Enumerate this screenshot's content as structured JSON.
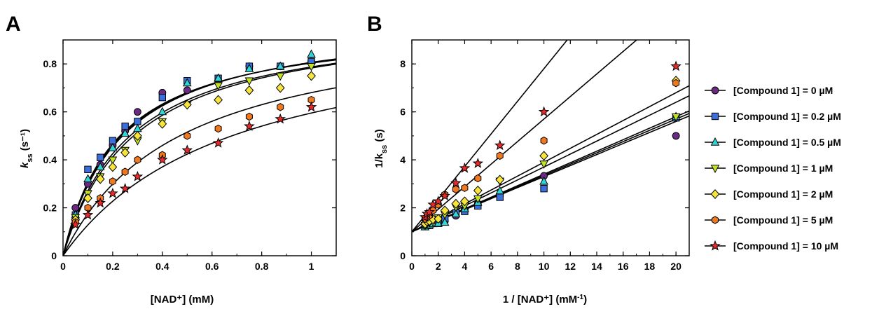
{
  "colors": {
    "series": [
      "#6a2a84",
      "#3d6fdc",
      "#2fd6d6",
      "#c3e322",
      "#f7e53b",
      "#f0781f",
      "#e52b2b"
    ],
    "line": "#000000"
  },
  "markers": [
    "circle",
    "square",
    "triangle-up",
    "triangle-down",
    "diamond",
    "hexagon",
    "star"
  ],
  "legend": {
    "placement": "right",
    "labels": [
      "[Compound 1] = 0 µM",
      "[Compound 1] = 0.2 µM",
      "[Compound 1] = 0.5 µM",
      "[Compound 1] = 1 µM",
      "[Compound 1] = 2 µM",
      "[Compound 1] = 5 µM",
      "[Compound 1] = 10 µM"
    ]
  },
  "chart_data": [
    {
      "panel_label": "A",
      "type": "scatter",
      "xlabel": "[NAD⁺] (mM)",
      "ylabel_main": "k",
      "ylabel_sub": "ss",
      "ylabel_rest": " (s⁻¹)",
      "xlim": [
        0,
        1.1
      ],
      "ylim": [
        0,
        0.9
      ],
      "xticks": [
        0,
        0.2,
        0.4,
        0.6,
        0.8,
        1
      ],
      "xtick_labels": [
        "0",
        "0.2",
        "0.4",
        "0.6",
        "0.8",
        "1"
      ],
      "yticks": [
        0,
        0.2,
        0.4,
        0.6,
        0.8
      ],
      "ytick_labels": [
        "0",
        "0.2",
        "0.4",
        "0.6",
        "0.8"
      ],
      "x": [
        0.05,
        0.1,
        0.15,
        0.2,
        0.25,
        0.3,
        0.4,
        0.5,
        0.625,
        0.75,
        0.875,
        1.0
      ],
      "series": [
        {
          "values": [
            0.2,
            0.3,
            0.38,
            0.46,
            0.52,
            0.6,
            0.68,
            0.69,
            0.73,
            0.79,
            0.79,
            0.81
          ],
          "fit": {
            "vmax": 0.98,
            "km": 0.22
          }
        },
        {
          "values": [
            0.17,
            0.36,
            0.41,
            0.48,
            0.54,
            0.56,
            0.66,
            0.73,
            0.74,
            0.79,
            0.79,
            0.81
          ],
          "fit": {
            "vmax": 0.99,
            "km": 0.23
          }
        },
        {
          "values": [
            0.17,
            0.32,
            0.37,
            0.45,
            0.51,
            0.53,
            0.6,
            0.72,
            0.74,
            0.78,
            0.79,
            0.84
          ],
          "fit": {
            "vmax": 1.0,
            "km": 0.24
          }
        },
        {
          "values": [
            0.16,
            0.26,
            0.33,
            0.4,
            0.44,
            0.48,
            0.56,
            0.63,
            0.71,
            0.73,
            0.75,
            0.79
          ],
          "fit": {
            "vmax": 1.0,
            "km": 0.27
          }
        },
        {
          "values": [
            0.15,
            0.24,
            0.32,
            0.37,
            0.43,
            0.5,
            0.55,
            0.63,
            0.65,
            0.69,
            0.7,
            0.75
          ],
          "fit": {
            "vmax": 1.01,
            "km": 0.29
          }
        },
        {
          "values": [
            0.14,
            0.2,
            0.24,
            0.31,
            0.35,
            0.4,
            0.42,
            0.5,
            0.53,
            0.58,
            0.62,
            0.65
          ],
          "fit": {
            "vmax": 1.0,
            "km": 0.47
          }
        },
        {
          "values": [
            0.13,
            0.17,
            0.22,
            0.26,
            0.28,
            0.33,
            0.4,
            0.44,
            0.47,
            0.54,
            0.57,
            0.62
          ],
          "fit": {
            "vmax": 1.0,
            "km": 0.68
          }
        }
      ]
    },
    {
      "panel_label": "B",
      "type": "scatter",
      "xlabel_main": "1 / [NAD⁺] (mM",
      "xlabel_sup": "-1",
      "xlabel_end": ")",
      "ylabel_main": "1/k",
      "ylabel_sub": "ss",
      "ylabel_rest": " (s)",
      "xlim": [
        0,
        21
      ],
      "ylim": [
        0,
        9
      ],
      "xticks": [
        0,
        2,
        4,
        6,
        8,
        10,
        12,
        14,
        16,
        18,
        20
      ],
      "xtick_labels": [
        "0",
        "2",
        "4",
        "6",
        "8",
        "10",
        "12",
        "14",
        "16",
        "18",
        "20"
      ],
      "yticks": [
        0,
        2,
        4,
        6,
        8
      ],
      "ytick_labels": [
        "0",
        "2",
        "4",
        "6",
        "8"
      ],
      "x": [
        1,
        1.143,
        1.333,
        1.6,
        2,
        2.5,
        3.333,
        4,
        5,
        6.667,
        10,
        20
      ],
      "series": [
        {
          "values": [
            1.23,
            1.26,
            1.27,
            1.37,
            1.39,
            1.45,
            1.67,
            1.92,
            2.17,
            2.5,
            3.33,
            5.0
          ],
          "fit": {
            "intercept": 1.0,
            "slope": 0.23
          }
        },
        {
          "values": [
            1.23,
            1.27,
            1.27,
            1.35,
            1.35,
            1.55,
            1.79,
            1.85,
            2.08,
            2.44,
            2.8,
            5.75
          ],
          "fit": {
            "intercept": 1.0,
            "slope": 0.235
          }
        },
        {
          "values": [
            1.2,
            1.26,
            1.28,
            1.33,
            1.35,
            1.39,
            1.74,
            1.96,
            2.22,
            2.7,
            3.1,
            5.8
          ],
          "fit": {
            "intercept": 1.0,
            "slope": 0.24
          }
        },
        {
          "values": [
            1.27,
            1.33,
            1.39,
            1.41,
            1.59,
            1.72,
            2.03,
            2.08,
            2.38,
            3.12,
            3.83,
            5.8
          ],
          "fit": {
            "intercept": 1.0,
            "slope": 0.27
          }
        },
        {
          "values": [
            1.33,
            1.43,
            1.45,
            1.52,
            1.54,
            1.89,
            2.17,
            2.27,
            2.72,
            3.17,
            4.17,
            7.3
          ],
          "fit": {
            "intercept": 1.0,
            "slope": 0.29
          }
        },
        {
          "values": [
            1.54,
            1.61,
            1.68,
            1.89,
            2.13,
            2.55,
            2.77,
            2.83,
            3.23,
            4.17,
            4.8,
            7.2
          ],
          "fit": {
            "intercept": 1.0,
            "slope": 0.47
          }
        },
        {
          "values": [
            1.61,
            1.75,
            1.82,
            2.13,
            2.27,
            2.5,
            3.03,
            3.65,
            3.85,
            4.6,
            6.0,
            7.9
          ],
          "fit": {
            "intercept": 1.0,
            "slope": 0.68
          }
        }
      ]
    }
  ]
}
